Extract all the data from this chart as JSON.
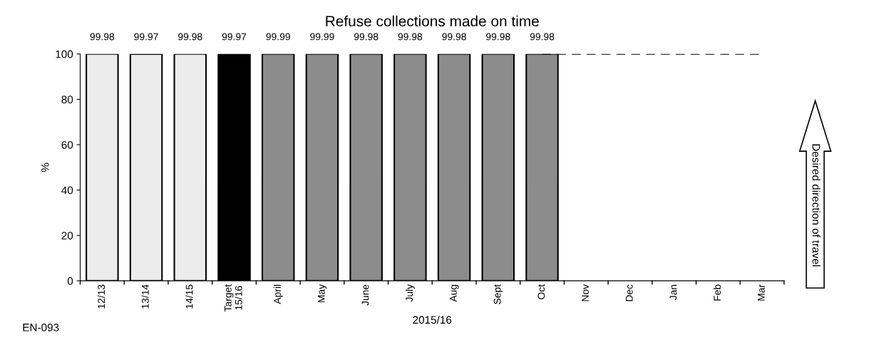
{
  "chart_data": {
    "type": "bar",
    "title": "Refuse collections made on time",
    "xlabel": "2015/16",
    "ylabel": "%",
    "categories": [
      "12/13",
      "13/14",
      "14/15",
      "Target\n15/16",
      "April",
      "May",
      "June",
      "July",
      "Aug",
      "Sept",
      "Oct",
      "Nov",
      "Dec",
      "Jan",
      "Feb",
      "Mar"
    ],
    "series": [
      {
        "values": [
          99.98,
          99.97,
          99.98,
          99.97,
          99.99,
          99.99,
          99.98,
          99.98,
          99.98,
          99.98,
          99.98,
          null,
          null,
          null,
          null,
          null
        ],
        "value_labels": [
          "99.98",
          "99.97",
          "99.98",
          "99.97",
          "99.99",
          "99.99",
          "99.98",
          "99.98",
          "99.98",
          "99.98",
          "99.98",
          null,
          null,
          null,
          null,
          null
        ],
        "colors": [
          "#ececec",
          "#ececec",
          "#ececec",
          "#000000",
          "#8c8c8c",
          "#8c8c8c",
          "#8c8c8c",
          "#8c8c8c",
          "#8c8c8c",
          "#8c8c8c",
          "#8c8c8c",
          "#8c8c8c",
          "#8c8c8c",
          "#8c8c8c",
          "#8c8c8c",
          "#8c8c8c"
        ]
      },
      {
        "type": "line",
        "color": "#000000",
        "line_style": "dashed",
        "marker": "none",
        "values": [
          null,
          null,
          null,
          null,
          null,
          null,
          null,
          null,
          null,
          null,
          100,
          100,
          100,
          100,
          100,
          100
        ]
      }
    ],
    "ylim": [
      0,
      100
    ],
    "yticks": [
      0,
      20,
      40,
      60,
      80,
      100
    ],
    "grid": false,
    "legend": false,
    "annotations": [
      "EN-093",
      "Desired direction of travel"
    ]
  }
}
